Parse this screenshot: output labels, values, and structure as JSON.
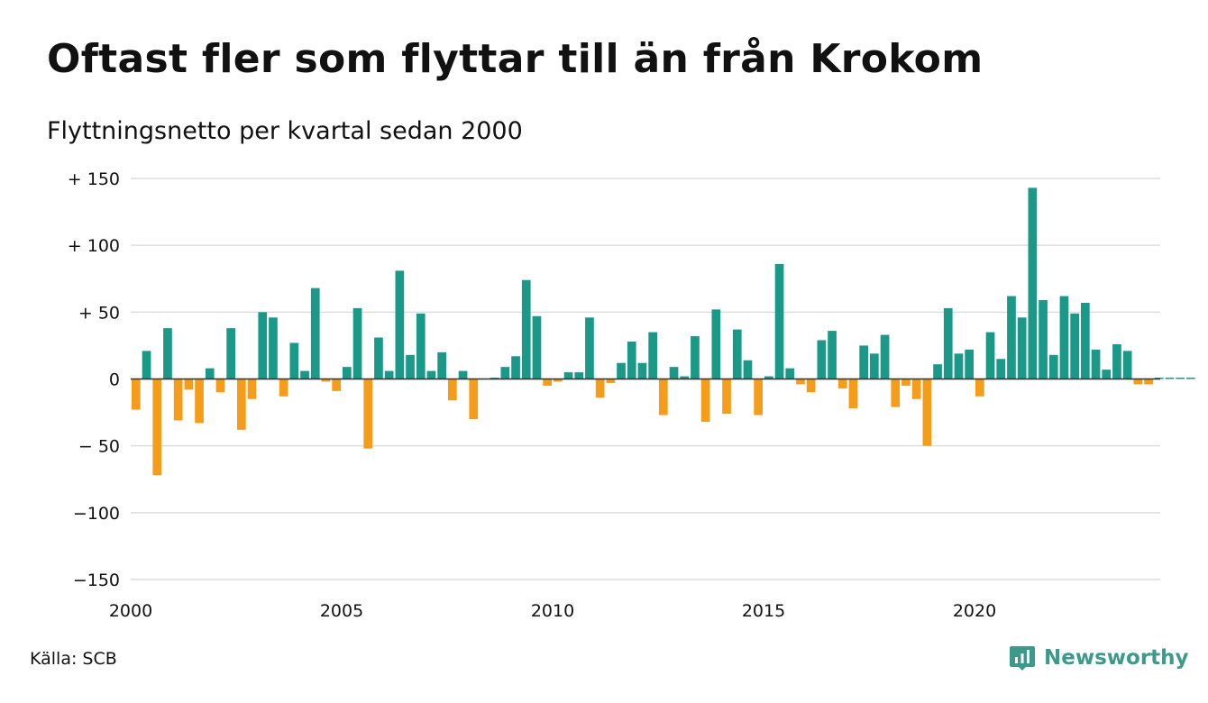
{
  "title": "Oftast fler som flyttar till än från Krokom",
  "subtitle": "Flyttningsnetto per kvartal sedan 2000",
  "source": "Källa: SCB",
  "brand": {
    "name": "Newsworthy",
    "icon": "newsworthy-logo-icon",
    "color": "#3d9a8a"
  },
  "colors": {
    "positive": "#1a9988",
    "negative": "#f59c1a",
    "grid": "#dddddd"
  },
  "chart_data": {
    "type": "bar",
    "title": "Oftast fler som flyttar till än från Krokom",
    "subtitle": "Flyttningsnetto per kvartal sedan 2000",
    "xlabel": "",
    "ylabel": "",
    "ylim": [
      -150,
      150
    ],
    "yticks": [
      150,
      100,
      50,
      0,
      -50,
      -100,
      -150
    ],
    "ytick_labels": [
      "+ 150",
      "+ 100",
      "+  50",
      "0",
      "− 50",
      "−100",
      "−150"
    ],
    "xticks": [
      "2000",
      "2005",
      "2010",
      "2015",
      "2020"
    ],
    "grid": true,
    "legend": "none",
    "start_year": 2000,
    "categories": [
      "2000 K1",
      "2000 K2",
      "2000 K3",
      "2000 K4",
      "2001 K1",
      "2001 K2",
      "2001 K3",
      "2001 K4",
      "2002 K1",
      "2002 K2",
      "2002 K3",
      "2002 K4",
      "2003 K1",
      "2003 K2",
      "2003 K3",
      "2003 K4",
      "2004 K1",
      "2004 K2",
      "2004 K3",
      "2004 K4",
      "2005 K1",
      "2005 K2",
      "2005 K3",
      "2005 K4",
      "2006 K1",
      "2006 K2",
      "2006 K3",
      "2006 K4",
      "2007 K1",
      "2007 K2",
      "2007 K3",
      "2007 K4",
      "2008 K1",
      "2008 K2",
      "2008 K3",
      "2008 K4",
      "2009 K1",
      "2009 K2",
      "2009 K3",
      "2009 K4",
      "2010 K1",
      "2010 K2",
      "2010 K3",
      "2010 K4",
      "2011 K1",
      "2011 K2",
      "2011 K3",
      "2011 K4",
      "2012 K1",
      "2012 K2",
      "2012 K3",
      "2012 K4",
      "2013 K1",
      "2013 K2",
      "2013 K3",
      "2013 K4",
      "2014 K1",
      "2014 K2",
      "2014 K3",
      "2014 K4",
      "2015 K1",
      "2015 K2",
      "2015 K3",
      "2015 K4",
      "2016 K1",
      "2016 K2",
      "2016 K3",
      "2016 K4",
      "2017 K1",
      "2017 K2",
      "2017 K3",
      "2017 K4",
      "2018 K1",
      "2018 K2",
      "2018 K3",
      "2018 K4",
      "2019 K1",
      "2019 K2",
      "2019 K3",
      "2019 K4",
      "2020 K1",
      "2020 K2",
      "2020 K3",
      "2020 K4",
      "2021 K1",
      "2021 K2",
      "2021 K3",
      "2021 K4",
      "2022 K1",
      "2022 K2",
      "2022 K3",
      "2022 K4",
      "2023 K1",
      "2023 K2",
      "2023 K3",
      "2023 K4",
      "2024 K1",
      "2024 K2",
      "2024 K3",
      "2024 K4",
      "2025 K1"
    ],
    "values": [
      -23,
      21,
      -72,
      38,
      -31,
      -8,
      -33,
      8,
      -10,
      38,
      -38,
      -15,
      50,
      46,
      -13,
      27,
      6,
      68,
      -2,
      -9,
      9,
      53,
      -52,
      31,
      6,
      81,
      18,
      49,
      6,
      20,
      -16,
      6,
      -30,
      0,
      1,
      9,
      17,
      74,
      47,
      -5,
      -2,
      5,
      5,
      46,
      -14,
      -3,
      12,
      28,
      12,
      35,
      -27,
      9,
      2,
      32,
      -32,
      52,
      -26,
      37,
      14,
      -27,
      2,
      86,
      8,
      -4,
      -10,
      29,
      36,
      -7,
      -22,
      25,
      19,
      33,
      -21,
      -5,
      -15,
      -50,
      11,
      53,
      19,
      22,
      -13,
      35,
      15,
      62,
      46,
      143,
      59,
      18,
      62,
      49,
      57,
      22,
      7,
      26,
      21,
      -4,
      -4,
      1,
      1,
      1,
      1
    ]
  }
}
